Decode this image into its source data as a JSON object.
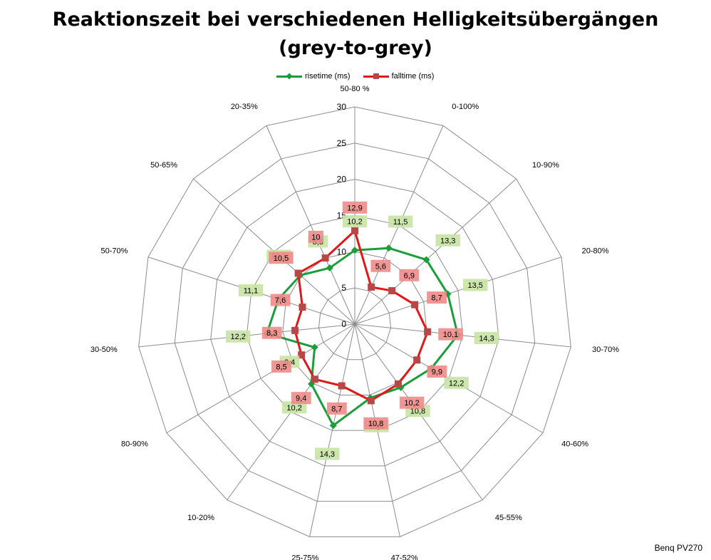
{
  "chart_data": {
    "type": "radar",
    "title_line1": "Reaktionszeit bei verschiedenen Helligkeitsübergängen",
    "title_line2": "(grey-to-grey)",
    "categories": [
      "50-80 %",
      "0-100%",
      "10-90%",
      "20-80%",
      "30-70%",
      "40-60%",
      "45-55%",
      "47-52%",
      "25-75%",
      "10-20%",
      "80-90%",
      "30-50%",
      "50-70%",
      "50-65%",
      "20-35%"
    ],
    "rlim": [
      0,
      30
    ],
    "rticks": [
      0,
      5,
      10,
      15,
      20,
      25,
      30
    ],
    "series": [
      {
        "name": "risetime (ms)",
        "color": "#1a9e3a",
        "label_bg": "#c6e3a3",
        "marker": "diamond",
        "values": [
          10.2,
          11.5,
          13.3,
          13.5,
          14.3,
          12.2,
          10.8,
          10.4,
          14.3,
          10.2,
          6.4,
          12.2,
          11.1,
          10.1,
          8.5
        ],
        "labels": [
          "10,2",
          "11,5",
          "13,3",
          "13,5",
          "14,3",
          "12,2",
          "10,8",
          "10,4",
          "14,3",
          "10,2",
          "6,4",
          "12,2",
          "11,1",
          "10,1",
          "8,5"
        ]
      },
      {
        "name": "falltime (ms)",
        "color": "#e01818",
        "label_bg": "#f08a8a",
        "marker": "square",
        "values": [
          12.9,
          5.6,
          6.9,
          8.7,
          10.1,
          9.9,
          10.2,
          10.8,
          8.7,
          9.4,
          8.5,
          8.3,
          7.6,
          10.5,
          10.0
        ],
        "labels": [
          "12,9",
          "5,6",
          "6,9",
          "8,7",
          "10,1",
          "9,9",
          "10,2",
          "10,8",
          "8,7",
          "9,4",
          "8,5",
          "8,3",
          "7,6",
          "10,5",
          "10"
        ]
      }
    ]
  },
  "footer": "Benq PV270"
}
